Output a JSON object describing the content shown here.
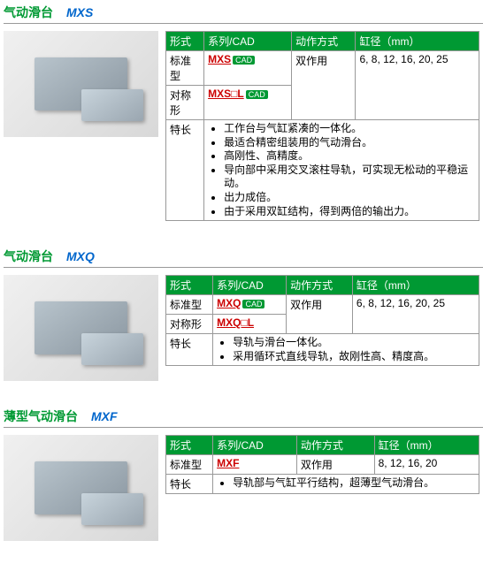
{
  "sections": [
    {
      "title_cn": "气动滑台",
      "title_model": "MXS",
      "headers": [
        "形式",
        "系列/CAD",
        "动作方式",
        "缸径（mm）"
      ],
      "rows": [
        {
          "type": "标准型",
          "model": "MXS",
          "cad": "CAD",
          "action": "双作用",
          "bore": "6, 8, 12, 16, 20, 25",
          "action_rowspan": 2,
          "bore_rowspan": 2
        },
        {
          "type": "对称形",
          "model": "MXS□L",
          "cad": "CAD"
        }
      ],
      "feature_label": "特长",
      "features": [
        "工作台与气缸紧凑的一体化。",
        "最适合精密组装用的气动滑台。",
        "高刚性、高精度。",
        "导向部中采用交叉滚柱导轨，可实现无松动的平稳运动。",
        "出力成倍。",
        "由于采用双缸结构，得到两倍的输出力。"
      ]
    },
    {
      "title_cn": "气动滑台",
      "title_model": "MXQ",
      "headers": [
        "形式",
        "系列/CAD",
        "动作方式",
        "缸径（mm）"
      ],
      "rows": [
        {
          "type": "标准型",
          "model": "MXQ",
          "cad": "CAD",
          "action": "双作用",
          "bore": "6, 8, 12, 16, 20, 25",
          "action_rowspan": 2,
          "bore_rowspan": 2
        },
        {
          "type": "对称形",
          "model": "MXQ□L",
          "cad": ""
        }
      ],
      "feature_label": "特长",
      "features": [
        "导轨与滑台一体化。",
        "采用循环式直线导轨，故刚性高、精度高。"
      ]
    },
    {
      "title_cn": "薄型气动滑台",
      "title_model": "MXF",
      "headers": [
        "形式",
        "系列/CAD",
        "动作方式",
        "缸径（mm）"
      ],
      "rows": [
        {
          "type": "标准型",
          "model": "MXF",
          "cad": "",
          "action": "双作用",
          "bore": "8, 12, 16, 20"
        }
      ],
      "feature_label": "特长",
      "features": [
        "导轨部与气缸平行结构，超薄型气动滑台。"
      ]
    }
  ]
}
